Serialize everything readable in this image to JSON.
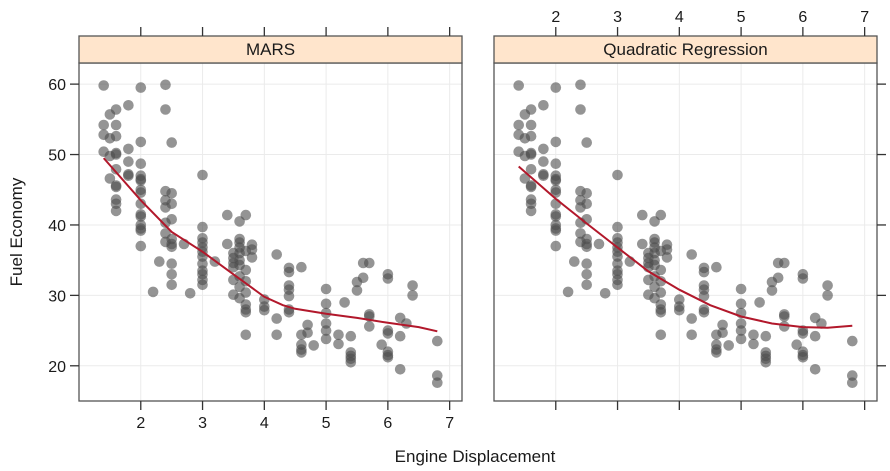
{
  "chart_data": {
    "type": "scatter",
    "xlabel": "Engine Displacement",
    "ylabel": "Fuel Economy",
    "xlim": [
      1.0,
      7.2
    ],
    "ylim": [
      15,
      63
    ],
    "x_ticks": [
      2,
      3,
      4,
      5,
      6,
      7
    ],
    "x_tick_labels": [
      "2",
      "3",
      "4",
      "5",
      "6",
      "7"
    ],
    "y_ticks": [
      20,
      30,
      40,
      50,
      60
    ],
    "y_tick_labels": [
      "20",
      "30",
      "40",
      "50",
      "60"
    ],
    "grid": true,
    "colors": {
      "strip": "#ffe5cc",
      "point": "#4d4d4d",
      "fit_line": "#b2182b",
      "grid": "#ebebeb",
      "frame": "#555555"
    },
    "points": [
      [
        1.4,
        59.8
      ],
      [
        1.4,
        54.2
      ],
      [
        1.4,
        52.8
      ],
      [
        1.4,
        50.4
      ],
      [
        1.5,
        55.7
      ],
      [
        1.5,
        52.3
      ],
      [
        1.5,
        49.8
      ],
      [
        1.5,
        46.6
      ],
      [
        1.6,
        56.4
      ],
      [
        1.6,
        54.2
      ],
      [
        1.6,
        52.6
      ],
      [
        1.6,
        50.2
      ],
      [
        1.6,
        50.0
      ],
      [
        1.6,
        47.9
      ],
      [
        1.6,
        45.6
      ],
      [
        1.6,
        45.4
      ],
      [
        1.6,
        43.6
      ],
      [
        1.6,
        43.0
      ],
      [
        1.6,
        42.0
      ],
      [
        1.8,
        57.0
      ],
      [
        1.8,
        50.8
      ],
      [
        1.8,
        49.0
      ],
      [
        1.8,
        47.2
      ],
      [
        1.8,
        47.0
      ],
      [
        2.0,
        59.5
      ],
      [
        2.0,
        51.8
      ],
      [
        2.0,
        48.7
      ],
      [
        2.0,
        47.0
      ],
      [
        2.0,
        46.5
      ],
      [
        2.0,
        46.3
      ],
      [
        2.0,
        45.0
      ],
      [
        2.0,
        44.6
      ],
      [
        2.0,
        43.0
      ],
      [
        2.0,
        41.5
      ],
      [
        2.0,
        41.2
      ],
      [
        2.0,
        40.0
      ],
      [
        2.0,
        39.5
      ],
      [
        2.0,
        39.2
      ],
      [
        2.0,
        37.0
      ],
      [
        2.2,
        30.5
      ],
      [
        2.3,
        34.8
      ],
      [
        2.4,
        59.9
      ],
      [
        2.4,
        56.4
      ],
      [
        2.4,
        44.8
      ],
      [
        2.4,
        43.5
      ],
      [
        2.4,
        42.5
      ],
      [
        2.4,
        40.3
      ],
      [
        2.4,
        38.8
      ],
      [
        2.4,
        37.6
      ],
      [
        2.5,
        51.7
      ],
      [
        2.5,
        44.5
      ],
      [
        2.5,
        43.0
      ],
      [
        2.5,
        40.8
      ],
      [
        2.5,
        38.0
      ],
      [
        2.5,
        37.3
      ],
      [
        2.5,
        36.9
      ],
      [
        2.5,
        34.5
      ],
      [
        2.5,
        33.0
      ],
      [
        2.5,
        31.5
      ],
      [
        2.7,
        37.3
      ],
      [
        2.8,
        30.3
      ],
      [
        3.0,
        47.1
      ],
      [
        3.0,
        39.7
      ],
      [
        3.0,
        38.1
      ],
      [
        3.0,
        37.5
      ],
      [
        3.0,
        36.8
      ],
      [
        3.0,
        36.2
      ],
      [
        3.0,
        35.5
      ],
      [
        3.0,
        34.5
      ],
      [
        3.0,
        33.5
      ],
      [
        3.0,
        33.0
      ],
      [
        3.0,
        32.2
      ],
      [
        3.0,
        31.5
      ],
      [
        3.2,
        34.8
      ],
      [
        3.4,
        41.4
      ],
      [
        3.4,
        37.3
      ],
      [
        3.5,
        36.0
      ],
      [
        3.5,
        35.3
      ],
      [
        3.5,
        34.6
      ],
      [
        3.5,
        34.0
      ],
      [
        3.5,
        32.2
      ],
      [
        3.5,
        30.1
      ],
      [
        3.6,
        40.5
      ],
      [
        3.6,
        38.0
      ],
      [
        3.6,
        37.5
      ],
      [
        3.6,
        36.8
      ],
      [
        3.6,
        36.0
      ],
      [
        3.6,
        35.0
      ],
      [
        3.6,
        34.3
      ],
      [
        3.6,
        32.7
      ],
      [
        3.6,
        31.2
      ],
      [
        3.6,
        29.6
      ],
      [
        3.7,
        41.4
      ],
      [
        3.7,
        36.3
      ],
      [
        3.7,
        33.6
      ],
      [
        3.7,
        32.0
      ],
      [
        3.7,
        30.4
      ],
      [
        3.7,
        28.7
      ],
      [
        3.7,
        28.0
      ],
      [
        3.7,
        27.6
      ],
      [
        3.7,
        24.4
      ],
      [
        3.8,
        37.2
      ],
      [
        3.8,
        36.5
      ],
      [
        3.8,
        35.4
      ],
      [
        4.0,
        29.4
      ],
      [
        4.0,
        28.4
      ],
      [
        4.0,
        27.9
      ],
      [
        4.2,
        35.8
      ],
      [
        4.2,
        26.7
      ],
      [
        4.2,
        24.4
      ],
      [
        4.4,
        33.9
      ],
      [
        4.4,
        33.3
      ],
      [
        4.4,
        31.4
      ],
      [
        4.4,
        30.8
      ],
      [
        4.4,
        29.9
      ],
      [
        4.4,
        28.0
      ],
      [
        4.4,
        27.6
      ],
      [
        4.6,
        34.0
      ],
      [
        4.6,
        24.4
      ],
      [
        4.6,
        23.0
      ],
      [
        4.6,
        22.3
      ],
      [
        4.6,
        21.9
      ],
      [
        4.7,
        25.8
      ],
      [
        4.7,
        24.7
      ],
      [
        4.8,
        22.9
      ],
      [
        5.0,
        30.9
      ],
      [
        5.0,
        28.8
      ],
      [
        5.0,
        27.5
      ],
      [
        5.0,
        26.0
      ],
      [
        5.0,
        25.0
      ],
      [
        5.0,
        23.8
      ],
      [
        5.2,
        24.4
      ],
      [
        5.2,
        23.1
      ],
      [
        5.3,
        29.0
      ],
      [
        5.4,
        24.2
      ],
      [
        5.4,
        21.9
      ],
      [
        5.4,
        21.4
      ],
      [
        5.4,
        21.0
      ],
      [
        5.4,
        20.5
      ],
      [
        5.5,
        31.9
      ],
      [
        5.5,
        30.7
      ],
      [
        5.6,
        34.6
      ],
      [
        5.6,
        32.5
      ],
      [
        5.7,
        34.6
      ],
      [
        5.7,
        27.3
      ],
      [
        5.7,
        27.0
      ],
      [
        5.7,
        25.6
      ],
      [
        5.9,
        23.0
      ],
      [
        6.0,
        33.0
      ],
      [
        6.0,
        32.4
      ],
      [
        6.0,
        25.0
      ],
      [
        6.0,
        24.6
      ],
      [
        6.0,
        22.0
      ],
      [
        6.0,
        21.5
      ],
      [
        6.0,
        21.2
      ],
      [
        6.2,
        26.8
      ],
      [
        6.2,
        24.2
      ],
      [
        6.2,
        19.5
      ],
      [
        6.3,
        26.0
      ],
      [
        6.4,
        31.4
      ],
      [
        6.4,
        30.0
      ],
      [
        6.8,
        23.5
      ],
      [
        6.8,
        18.6
      ],
      [
        6.8,
        17.6
      ]
    ],
    "panels": [
      {
        "title": "MARS",
        "fit": {
          "x": [
            1.4,
            2.0,
            2.5,
            3.0,
            3.5,
            4.0,
            4.3,
            4.5,
            5.0,
            5.5,
            6.0,
            6.5,
            6.8
          ],
          "y": [
            49.5,
            43.5,
            39.0,
            36.2,
            33.0,
            29.8,
            28.6,
            28.1,
            27.4,
            26.8,
            26.1,
            25.5,
            24.9
          ]
        }
      },
      {
        "title": "Quadratic Regression",
        "fit": {
          "x": [
            1.4,
            2.0,
            2.5,
            3.0,
            3.5,
            4.0,
            4.5,
            5.0,
            5.5,
            6.0,
            6.4,
            6.8
          ],
          "y": [
            48.3,
            43.7,
            40.2,
            36.8,
            33.4,
            30.8,
            28.6,
            27.0,
            26.0,
            25.5,
            25.4,
            25.7
          ]
        }
      }
    ]
  }
}
